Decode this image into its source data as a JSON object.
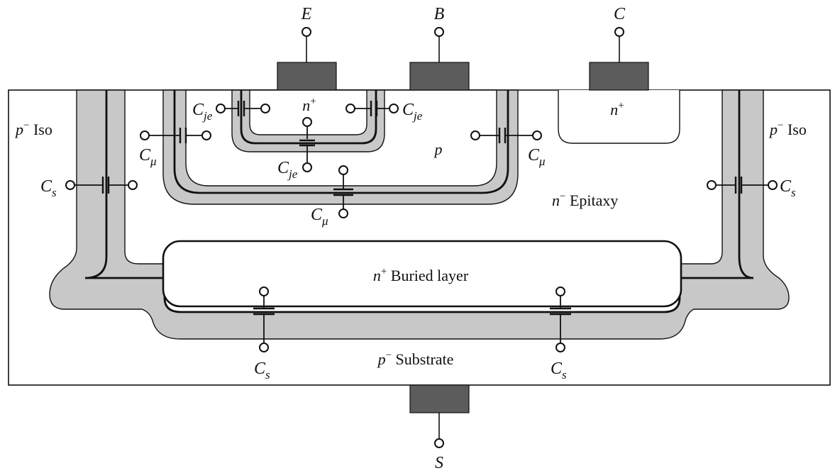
{
  "colors": {
    "depletion": "#c8c8c8",
    "contact": "#5c5c5c",
    "line": "#111111",
    "background": "#ffffff"
  },
  "terminals": {
    "emitter": "E",
    "base": "B",
    "collector": "C",
    "substrate": "S"
  },
  "regions": {
    "iso_left": "p− Iso",
    "iso_right": "p− Iso",
    "emitter_region": "n+",
    "base_region": "p",
    "collector_contact_region": "n+",
    "epitaxy": "n− Epitaxy",
    "buried_layer": "n+ Buried layer",
    "substrate": "p− Substrate"
  },
  "capacitors": {
    "cje_left": "Cje",
    "cje_right": "Cje",
    "cje_bottom": "Cje",
    "cmu_left": "Cμ",
    "cmu_right": "Cμ",
    "cmu_bottom": "Cμ",
    "cs_left": "Cs",
    "cs_right": "Cs",
    "cs_bottom_left": "Cs",
    "cs_bottom_right": "Cs"
  }
}
